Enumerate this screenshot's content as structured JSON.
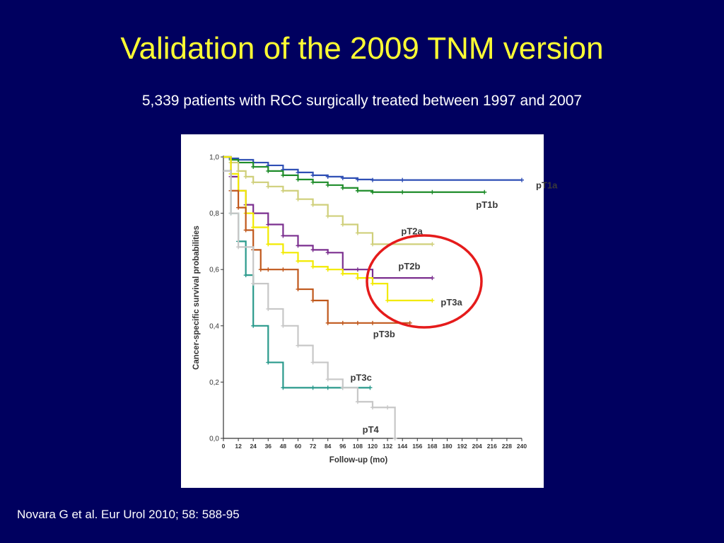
{
  "slide": {
    "title": "Validation of the 2009 TNM version",
    "subtitle": "5,339 patients with RCC surgically treated between 1997 and 2007",
    "citation": "Novara G et al. Eur Urol 2010; 58: 588-95"
  },
  "colors": {
    "background": "#00005f",
    "title": "#ffff33",
    "highlight_circle": "#e51b1b"
  },
  "chart_data": {
    "type": "line",
    "subtype": "kaplan-meier step",
    "title": "",
    "xlabel": "Follow-up (mo)",
    "ylabel": "Cancer-specific survival probabilities",
    "xlim": [
      0,
      240
    ],
    "ylim": [
      0,
      1.0
    ],
    "x_ticks": [
      0,
      12,
      24,
      36,
      48,
      60,
      72,
      84,
      96,
      108,
      120,
      132,
      144,
      156,
      168,
      180,
      192,
      204,
      216,
      228,
      240
    ],
    "y_ticks": [
      0.0,
      0.2,
      0.4,
      0.6,
      0.8,
      1.0
    ],
    "y_tick_labels": [
      "0,0",
      "0,2",
      "0,4",
      "0,6",
      "0,8",
      "1,0"
    ],
    "grid": false,
    "annotation": "red circle highlighting pT2a, pT2b and pT3a curves",
    "series": [
      {
        "name": "pT1a",
        "color": "#2f4fb5",
        "x": [
          0,
          6,
          12,
          24,
          36,
          48,
          60,
          72,
          84,
          96,
          108,
          120,
          144,
          240
        ],
        "y": [
          1.0,
          0.995,
          0.99,
          0.98,
          0.97,
          0.955,
          0.945,
          0.935,
          0.93,
          0.925,
          0.92,
          0.918,
          0.918,
          0.918
        ]
      },
      {
        "name": "pT1b",
        "color": "#1e8c2a",
        "x": [
          0,
          6,
          12,
          24,
          36,
          48,
          60,
          72,
          84,
          96,
          108,
          120,
          144,
          168,
          210
        ],
        "y": [
          1.0,
          0.99,
          0.98,
          0.965,
          0.95,
          0.935,
          0.92,
          0.91,
          0.9,
          0.89,
          0.88,
          0.875,
          0.875,
          0.875,
          0.875
        ]
      },
      {
        "name": "pT2a",
        "color": "#cfcf7a",
        "x": [
          0,
          6,
          12,
          18,
          24,
          36,
          48,
          60,
          72,
          84,
          96,
          108,
          120,
          168
        ],
        "y": [
          1.0,
          0.98,
          0.95,
          0.93,
          0.91,
          0.895,
          0.88,
          0.85,
          0.83,
          0.79,
          0.76,
          0.73,
          0.69,
          0.69
        ]
      },
      {
        "name": "pT2b",
        "color": "#7b2f8f",
        "x": [
          0,
          6,
          12,
          18,
          24,
          36,
          48,
          60,
          72,
          84,
          96,
          108,
          120,
          168
        ],
        "y": [
          1.0,
          0.93,
          0.88,
          0.83,
          0.8,
          0.76,
          0.72,
          0.685,
          0.67,
          0.66,
          0.6,
          0.6,
          0.57,
          0.57
        ]
      },
      {
        "name": "pT3a",
        "color": "#f2ea00",
        "x": [
          0,
          6,
          12,
          18,
          24,
          36,
          48,
          60,
          72,
          84,
          96,
          108,
          120,
          132,
          168
        ],
        "y": [
          1.0,
          0.94,
          0.88,
          0.8,
          0.75,
          0.69,
          0.66,
          0.63,
          0.61,
          0.6,
          0.585,
          0.57,
          0.55,
          0.49,
          0.49
        ]
      },
      {
        "name": "pT3b",
        "color": "#c0581c",
        "x": [
          0,
          6,
          12,
          18,
          24,
          30,
          36,
          48,
          60,
          72,
          84,
          96,
          108,
          120,
          150
        ],
        "y": [
          0.95,
          0.88,
          0.82,
          0.74,
          0.67,
          0.6,
          0.6,
          0.6,
          0.53,
          0.49,
          0.41,
          0.41,
          0.41,
          0.41,
          0.41
        ]
      },
      {
        "name": "pT3c",
        "color": "#2a9a8c",
        "x": [
          0,
          6,
          12,
          18,
          24,
          36,
          48,
          72,
          84,
          96,
          118
        ],
        "y": [
          0.95,
          0.8,
          0.7,
          0.58,
          0.4,
          0.27,
          0.18,
          0.18,
          0.18,
          0.18,
          0.18
        ]
      },
      {
        "name": "pT4",
        "color": "#c7c7c7",
        "x": [
          0,
          6,
          12,
          24,
          36,
          48,
          60,
          72,
          84,
          96,
          108,
          120,
          132,
          138
        ],
        "y": [
          0.95,
          0.8,
          0.68,
          0.55,
          0.46,
          0.4,
          0.33,
          0.27,
          0.21,
          0.18,
          0.13,
          0.11,
          0.11,
          0.0
        ]
      }
    ]
  }
}
